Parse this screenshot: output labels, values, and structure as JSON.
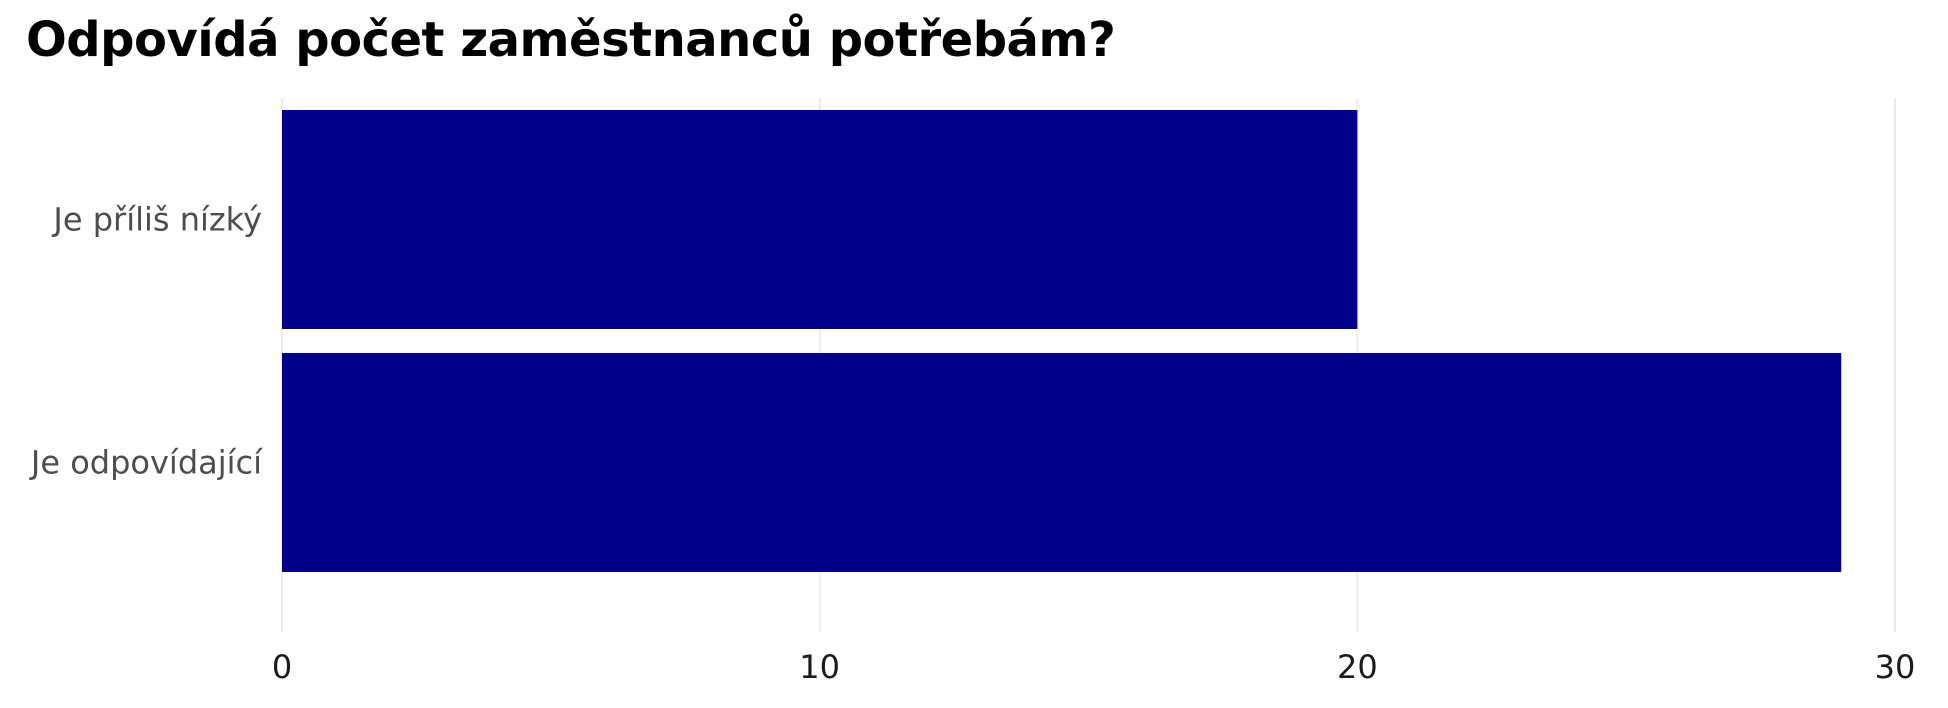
{
  "chart_data": {
    "type": "bar",
    "orientation": "horizontal",
    "title": "Odpovídá počet zaměstnanců potřebám?",
    "xlabel": "",
    "ylabel": "",
    "categories": [
      "Je příliš nízký",
      "Je odpovídající"
    ],
    "values": [
      20,
      29
    ],
    "xlim": [
      0,
      30
    ],
    "ticks": [
      0,
      10,
      20,
      30
    ],
    "grid": "vertical",
    "legend": "none",
    "bar_color": "#00008b"
  }
}
